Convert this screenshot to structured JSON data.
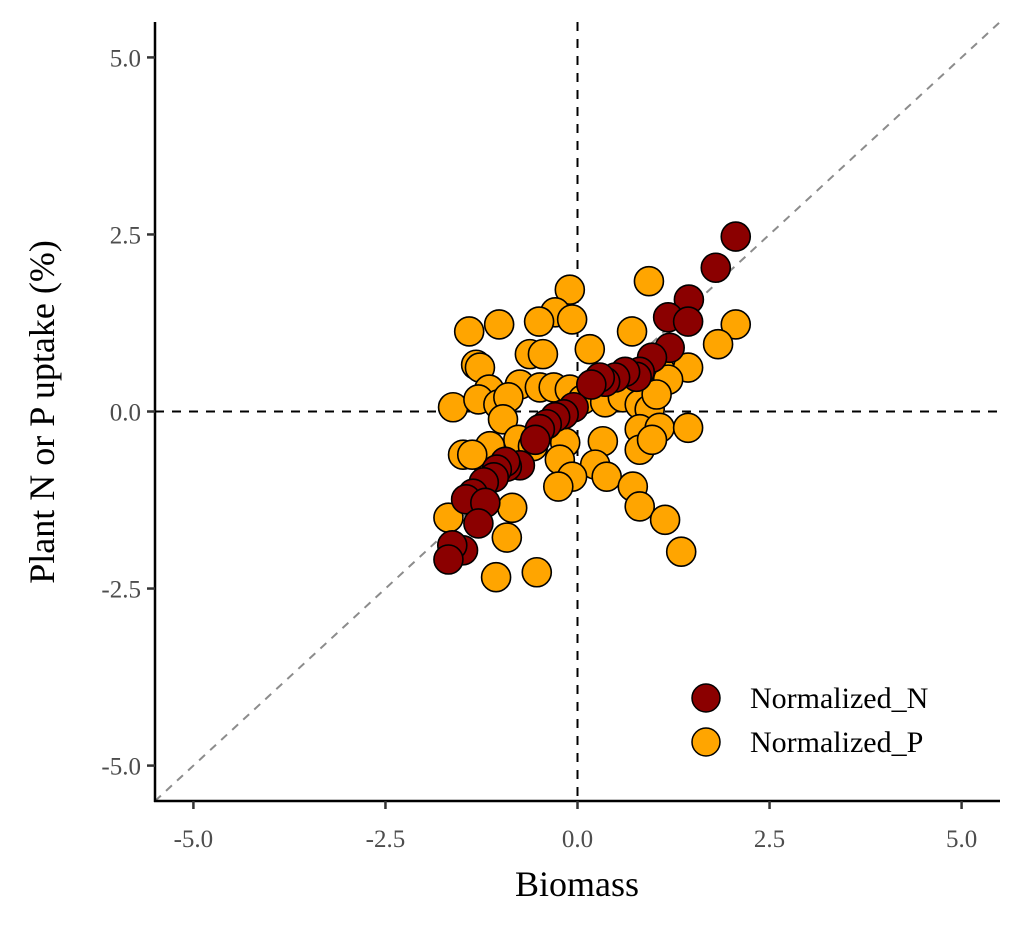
{
  "chart_data": {
    "type": "scatter",
    "title": "",
    "xlabel": "Biomass",
    "ylabel": "Plant N or P uptake (%)",
    "xlim": [
      -5.5,
      5.5
    ],
    "ylim": [
      -5.5,
      5.5
    ],
    "x_ticks": [
      -5.0,
      -2.5,
      0.0,
      2.5,
      5.0
    ],
    "y_ticks": [
      -5.0,
      -2.5,
      0.0,
      2.5,
      5.0
    ],
    "x_tick_labels": [
      "-5.0",
      "-2.5",
      "0.0",
      "2.5",
      "5.0"
    ],
    "y_tick_labels": [
      "-5.0",
      "-2.5",
      "0.0",
      "2.5",
      "5.0"
    ],
    "grid": false,
    "reference_lines": {
      "horizontal_zero": true,
      "vertical_zero": true,
      "identity_1to1": true
    },
    "legend": {
      "placement": "bottom-right",
      "entries": [
        "Normalized_N",
        "Normalized_P"
      ]
    },
    "series": [
      {
        "name": "Normalized_N",
        "color": "#8B0000",
        "points": [
          [
            2.06,
            2.47
          ],
          [
            1.8,
            2.03
          ],
          [
            1.45,
            1.58
          ],
          [
            1.18,
            1.33
          ],
          [
            1.44,
            1.27
          ],
          [
            1.2,
            0.9
          ],
          [
            0.97,
            0.76
          ],
          [
            0.81,
            0.56
          ],
          [
            0.77,
            0.49
          ],
          [
            0.62,
            0.56
          ],
          [
            0.49,
            0.48
          ],
          [
            0.36,
            0.42
          ],
          [
            0.29,
            0.48
          ],
          [
            0.18,
            0.38
          ],
          [
            -0.05,
            0.06
          ],
          [
            -0.18,
            -0.04
          ],
          [
            -0.29,
            -0.08
          ],
          [
            -0.4,
            -0.18
          ],
          [
            -0.49,
            -0.25
          ],
          [
            -0.55,
            -0.4
          ],
          [
            -0.75,
            -0.76
          ],
          [
            -0.92,
            -0.78
          ],
          [
            -0.94,
            -0.71
          ],
          [
            -1.05,
            -0.82
          ],
          [
            -1.09,
            -0.93
          ],
          [
            -1.22,
            -1.0
          ],
          [
            -1.36,
            -1.16
          ],
          [
            -1.45,
            -1.24
          ],
          [
            -1.2,
            -1.29
          ],
          [
            -1.29,
            -1.58
          ],
          [
            -1.49,
            -1.96
          ],
          [
            -1.63,
            -1.89
          ],
          [
            -1.68,
            -2.09
          ]
        ]
      },
      {
        "name": "Normalized_P",
        "color": "#FFA500",
        "points": [
          [
            -0.1,
            1.72
          ],
          [
            0.93,
            1.84
          ],
          [
            -1.02,
            1.23
          ],
          [
            -1.41,
            1.13
          ],
          [
            -0.29,
            1.4
          ],
          [
            -0.07,
            1.3
          ],
          [
            -0.5,
            1.27
          ],
          [
            0.71,
            1.13
          ],
          [
            2.06,
            1.23
          ],
          [
            1.83,
            0.95
          ],
          [
            -0.62,
            0.81
          ],
          [
            -0.45,
            0.81
          ],
          [
            -1.32,
            0.66
          ],
          [
            -1.27,
            0.62
          ],
          [
            0.16,
            0.88
          ],
          [
            1.07,
            0.59
          ],
          [
            1.44,
            0.62
          ],
          [
            1.18,
            0.45
          ],
          [
            -1.15,
            0.31
          ],
          [
            -0.75,
            0.38
          ],
          [
            -0.49,
            0.34
          ],
          [
            -0.31,
            0.34
          ],
          [
            -0.1,
            0.31
          ],
          [
            -1.62,
            0.06
          ],
          [
            -1.29,
            0.17
          ],
          [
            -1.03,
            0.1
          ],
          [
            -0.9,
            0.2
          ],
          [
            0.07,
            0.17
          ],
          [
            0.36,
            0.13
          ],
          [
            0.59,
            0.2
          ],
          [
            0.81,
            0.1
          ],
          [
            0.94,
            0.03
          ],
          [
            1.03,
            0.24
          ],
          [
            -1.49,
            -0.61
          ],
          [
            -1.2,
            -0.68
          ],
          [
            -0.97,
            -0.11
          ],
          [
            -0.77,
            -0.4
          ],
          [
            -0.58,
            -0.49
          ],
          [
            -0.16,
            -0.44
          ],
          [
            0.33,
            -0.42
          ],
          [
            0.81,
            -0.25
          ],
          [
            1.07,
            -0.23
          ],
          [
            1.44,
            -0.23
          ],
          [
            0.81,
            -0.54
          ],
          [
            0.97,
            -0.4
          ],
          [
            -0.23,
            -0.68
          ],
          [
            0.23,
            -0.75
          ],
          [
            0.38,
            -0.92
          ],
          [
            -0.07,
            -0.92
          ],
          [
            -0.25,
            -1.06
          ],
          [
            0.72,
            -1.06
          ],
          [
            -1.68,
            -1.5
          ],
          [
            -0.85,
            -1.36
          ],
          [
            0.81,
            -1.34
          ],
          [
            1.14,
            -1.53
          ],
          [
            -0.92,
            -1.78
          ],
          [
            1.35,
            -1.98
          ],
          [
            -1.06,
            -2.34
          ],
          [
            -0.53,
            -2.27
          ],
          [
            -1.14,
            -0.49
          ],
          [
            -1.37,
            -0.61
          ]
        ]
      }
    ]
  }
}
